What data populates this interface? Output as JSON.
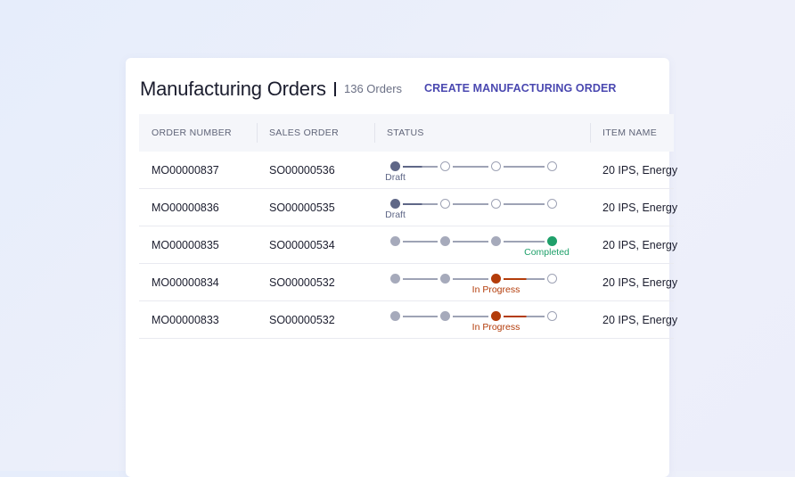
{
  "header": {
    "title": "Manufacturing Orders",
    "count": "136 Orders",
    "create_label": "CREATE MANUFACTURING ORDER"
  },
  "columns": [
    "ORDER NUMBER",
    "SALES ORDER",
    "STATUS",
    "ITEM NAME"
  ],
  "colors": {
    "draft": "#5f6787",
    "completed": "#1fa06a",
    "in_progress": "#b33c0a",
    "done_step": "#a6aabb",
    "accent": "#4a48b0"
  },
  "rows": [
    {
      "order": "MO00000837",
      "sales": "SO00000536",
      "status": "Draft",
      "step": 0,
      "state": "draft",
      "item": "20 IPS, Energy"
    },
    {
      "order": "MO00000836",
      "sales": "SO00000535",
      "status": "Draft",
      "step": 0,
      "state": "draft",
      "item": "20 IPS, Energy"
    },
    {
      "order": "MO00000835",
      "sales": "SO00000534",
      "status": "Completed",
      "step": 3,
      "state": "completed",
      "item": "20 IPS, Energy"
    },
    {
      "order": "MO00000834",
      "sales": "SO00000532",
      "status": "In Progress",
      "step": 2,
      "state": "in_progress",
      "item": "20 IPS, Energy"
    },
    {
      "order": "MO00000833",
      "sales": "SO00000532",
      "status": "In Progress",
      "step": 2,
      "state": "in_progress",
      "item": "20 IPS, Energy"
    }
  ]
}
